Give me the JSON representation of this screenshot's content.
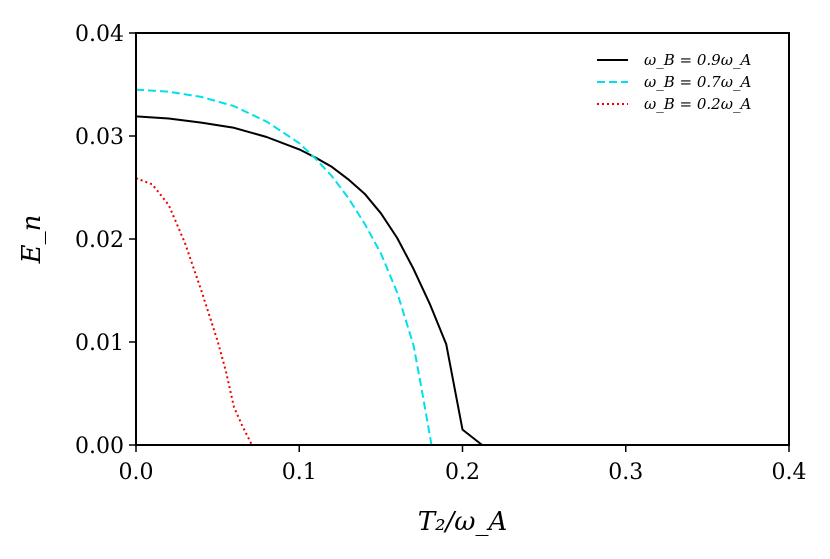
{
  "chart_data": {
    "type": "line",
    "xlabel": "T₂/ω_A",
    "ylabel": "E_n",
    "xlim": [
      0.0,
      0.4
    ],
    "ylim": [
      0.0,
      0.04
    ],
    "x_ticks": [
      "0.0",
      "0.1",
      "0.2",
      "0.3",
      "0.4"
    ],
    "y_ticks": [
      "0.00",
      "0.01",
      "0.02",
      "0.03",
      "0.04"
    ],
    "grid": false,
    "legend_position": "top-right",
    "series": [
      {
        "name": "ω_B = 0.9ω_A",
        "color": "#000000",
        "style": "solid",
        "x": [
          0.0,
          0.02,
          0.04,
          0.06,
          0.08,
          0.1,
          0.11,
          0.12,
          0.13,
          0.14,
          0.15,
          0.16,
          0.17,
          0.18,
          0.19,
          0.2,
          0.212,
          0.4
        ],
        "y": [
          0.0319,
          0.0317,
          0.0313,
          0.0308,
          0.0299,
          0.0287,
          0.0279,
          0.027,
          0.0258,
          0.0244,
          0.0225,
          0.0201,
          0.0171,
          0.0137,
          0.0098,
          0.0015,
          0.0,
          0.0
        ]
      },
      {
        "name": "ω_B = 0.7ω_A",
        "color": "#00e0e8",
        "style": "dashed",
        "x": [
          0.0,
          0.02,
          0.04,
          0.06,
          0.08,
          0.1,
          0.11,
          0.12,
          0.13,
          0.14,
          0.15,
          0.16,
          0.17,
          0.175,
          0.181
        ],
        "y": [
          0.0345,
          0.0343,
          0.0338,
          0.0329,
          0.0314,
          0.0293,
          0.0278,
          0.0261,
          0.024,
          0.0215,
          0.0186,
          0.0148,
          0.0097,
          0.0054,
          0.0
        ]
      },
      {
        "name": "ω_B = 0.2ω_A",
        "color": "#ee0000",
        "style": "dotted",
        "x": [
          0.0,
          0.01,
          0.02,
          0.03,
          0.04,
          0.05,
          0.055,
          0.06,
          0.065,
          0.071
        ],
        "y": [
          0.0259,
          0.0253,
          0.0233,
          0.0196,
          0.015,
          0.0101,
          0.0072,
          0.0037,
          0.0019,
          0.0
        ]
      }
    ]
  }
}
